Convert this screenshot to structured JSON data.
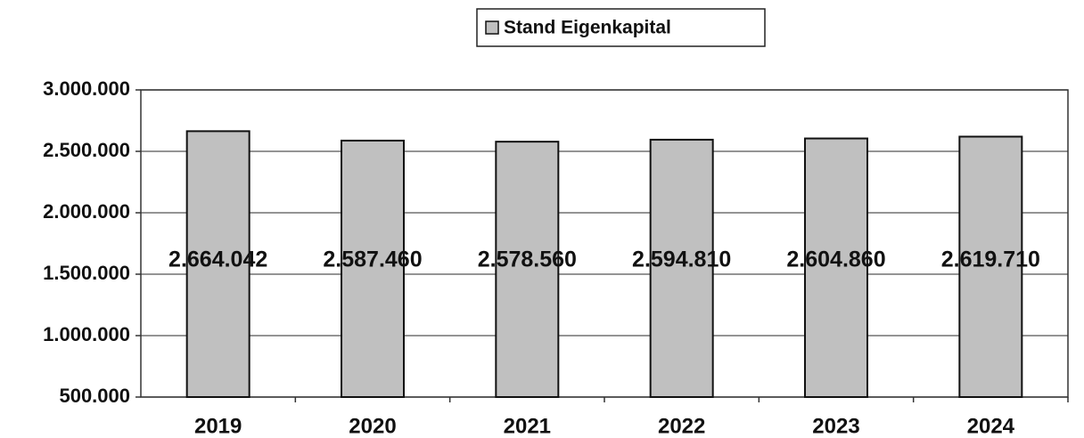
{
  "chart_data": {
    "type": "bar",
    "categories": [
      "2019",
      "2020",
      "2021",
      "2022",
      "2023",
      "2024"
    ],
    "series": [
      {
        "name": "Stand Eigenkapital",
        "color": "#c0c0c0",
        "values": [
          2664042,
          2587460,
          2578560,
          2594810,
          2604860,
          2619710
        ],
        "value_labels": [
          "2.664.042",
          "2.587.460",
          "2.578.560",
          "2.594.810",
          "2.604.860",
          "2.619.710"
        ]
      }
    ],
    "ylim": [
      500000,
      3000000
    ],
    "yticks": [
      {
        "value": 500000,
        "label": "500.000"
      },
      {
        "value": 1000000,
        "label": "1.000.000"
      },
      {
        "value": 1500000,
        "label": "1.500.000"
      },
      {
        "value": 2000000,
        "label": "2.000.000"
      },
      {
        "value": 2500000,
        "label": "2.500.000"
      },
      {
        "value": 3000000,
        "label": "3.000.000"
      }
    ],
    "grid": true,
    "legend": "top"
  }
}
